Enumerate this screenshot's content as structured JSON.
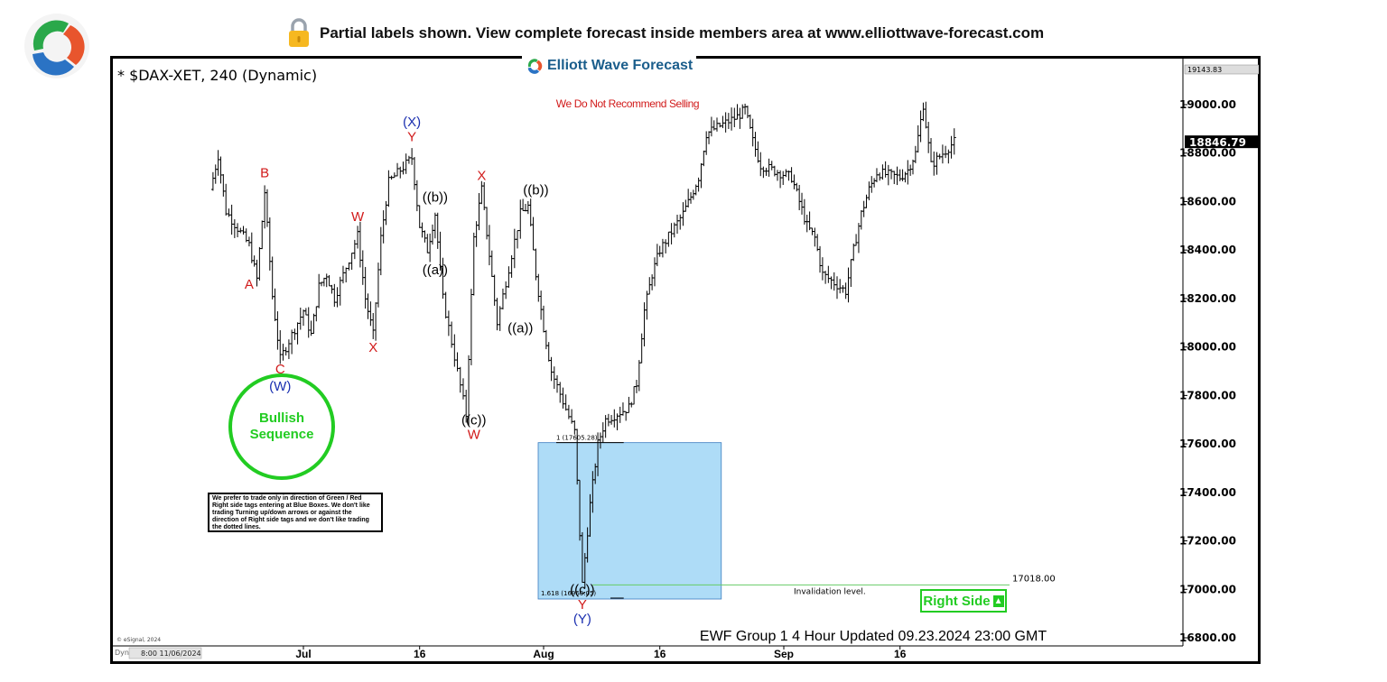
{
  "banner": {
    "lock_icon": "lock-icon",
    "text": "Partial labels shown. View complete forecast inside members area at www.elliottwave-forecast.com"
  },
  "brand": {
    "name": "Elliott Wave Forecast",
    "logo_icon": "swirl-logo-icon"
  },
  "chart_header": {
    "symbol": "* $DAX-XET, 240 (Dynamic)",
    "notice": "We Do Not Recommend Selling"
  },
  "footer": {
    "updated": "EWF Group 1 4 Hour Updated 09.23.2024 23:00 GMT",
    "copyright": "© eSignal, 2024",
    "cursor_time": "8:00 11/06/2024",
    "cursor_prefix": "Dyn"
  },
  "bullish_sequence": {
    "line1": "Bullish",
    "line2": "Sequence"
  },
  "disclaimer": {
    "text": "We prefer to trade only in direction of Green / Red Right side tags entering at Blue Boxes. We don't like trading Turning up/down arrows or against the direction of Right side tags and we don't like trading the dotted lines."
  },
  "right_side_tag": {
    "label": "Right Side",
    "arrow_icon": "arrow-up-icon"
  },
  "colors": {
    "blue_box": "#aedcf7",
    "blue_box_border": "#3a7bbf",
    "red_label": "#d11a1a",
    "blue_label": "#1a2fb0",
    "black_label": "#000000",
    "green": "#22cc22",
    "invalidation_line": "#66cc66"
  },
  "chart_data": {
    "type": "ohlc",
    "title": "* $DAX-XET, 240 (Dynamic)",
    "y_axis": {
      "ylim": [
        16790,
        19200
      ],
      "ticks": [
        "16800.00",
        "17000.00",
        "17200.00",
        "17400.00",
        "17600.00",
        "17800.00",
        "18000.00",
        "18200.00",
        "18400.00",
        "18600.00",
        "18800.00",
        "19000.00"
      ],
      "top_label": "19143.83",
      "last_price": "18846.79"
    },
    "x_axis": {
      "ticks": [
        "Jul",
        "16",
        "Aug",
        "16",
        "Sep",
        "16"
      ]
    },
    "price_path": [
      [
        "Jun 19",
        18650
      ],
      [
        "Jun 20",
        18790
      ],
      [
        "Jun 21",
        18560
      ],
      [
        "Jun 24",
        18420
      ],
      [
        "Jun 25",
        18280
      ],
      [
        "Jun 26",
        18640
      ],
      [
        "Jun 27",
        18210
      ],
      [
        "Jun 28",
        17950
      ],
      [
        "Jul 1",
        18150
      ],
      [
        "Jul 2",
        18050
      ],
      [
        "Jul 3",
        18250
      ],
      [
        "Jul 4",
        18300
      ],
      [
        "Jul 5",
        18200
      ],
      [
        "Jul 8",
        18460
      ],
      [
        "Jul 9",
        18200
      ],
      [
        "Jul 10",
        18050
      ],
      [
        "Jul 11",
        18450
      ],
      [
        "Jul 12",
        18680
      ],
      [
        "Jul 15",
        18780
      ],
      [
        "Jul 16",
        18500
      ],
      [
        "Jul 17",
        18400
      ],
      [
        "Jul 18",
        18550
      ],
      [
        "Jul 19",
        18200
      ],
      [
        "Jul 22",
        17720
      ],
      [
        "Jul 23",
        18450
      ],
      [
        "Jul 24",
        18650
      ],
      [
        "Jul 25",
        18380
      ],
      [
        "Jul 26",
        18100
      ],
      [
        "Jul 29",
        18550
      ],
      [
        "Jul 30",
        18580
      ],
      [
        "Jul 31",
        18300
      ],
      [
        "Aug 1",
        18080
      ],
      [
        "Aug 2",
        17900
      ],
      [
        "Aug 5",
        17650
      ],
      [
        "Aug 6",
        17020
      ],
      [
        "Aug 7",
        17350
      ],
      [
        "Aug 8",
        17600
      ],
      [
        "Aug 9",
        17700
      ],
      [
        "Aug 12",
        17750
      ],
      [
        "Aug 13",
        17850
      ],
      [
        "Aug 14",
        18150
      ],
      [
        "Aug 15",
        18300
      ],
      [
        "Aug 16",
        18400
      ],
      [
        "Aug 19",
        18550
      ],
      [
        "Aug 20",
        18620
      ],
      [
        "Aug 21",
        18700
      ],
      [
        "Aug 22",
        18880
      ],
      [
        "Aug 23",
        18900
      ],
      [
        "Aug 26",
        18950
      ],
      [
        "Aug 27",
        18980
      ],
      [
        "Aug 28",
        18850
      ],
      [
        "Aug 29",
        18750
      ],
      [
        "Sep 2",
        18700
      ],
      [
        "Sep 3",
        18600
      ],
      [
        "Sep 4",
        18500
      ],
      [
        "Sep 5",
        18450
      ],
      [
        "Sep 6",
        18300
      ],
      [
        "Sep 9",
        18230
      ],
      [
        "Sep 10",
        18400
      ],
      [
        "Sep 11",
        18550
      ],
      [
        "Sep 12",
        18650
      ],
      [
        "Sep 13",
        18720
      ],
      [
        "Sep 16",
        18700
      ],
      [
        "Sep 17",
        18730
      ],
      [
        "Sep 18",
        18800
      ],
      [
        "Sep 19",
        19000
      ],
      [
        "Sep 20",
        18750
      ],
      [
        "Sep 23",
        18846.79
      ]
    ],
    "blue_box": {
      "from": "Aug 1",
      "to": "Aug 23",
      "top": 17605.28,
      "bottom": 16960.05,
      "top_label": "1 (17605.28)",
      "bottom_label": "1.618 (16960.05)"
    },
    "invalidation": {
      "value": 17018.0,
      "label": "17018.00",
      "text": "Invalidation level."
    },
    "wave_labels": [
      {
        "text": "B",
        "date": "Jun 26",
        "price": 18700,
        "color": "red"
      },
      {
        "text": "A",
        "date": "Jun 24",
        "price": 18240,
        "color": "red"
      },
      {
        "text": "C",
        "date": "Jun 28",
        "price": 17890,
        "color": "red"
      },
      {
        "text": "(W)",
        "date": "Jun 28",
        "price": 17820,
        "color": "blue"
      },
      {
        "text": "W",
        "date": "Jul 8",
        "price": 18520,
        "color": "red"
      },
      {
        "text": "X",
        "date": "Jul 10",
        "price": 17980,
        "color": "red"
      },
      {
        "text": "(X)",
        "date": "Jul 15",
        "price": 18910,
        "color": "blue"
      },
      {
        "text": "Y",
        "date": "Jul 15",
        "price": 18850,
        "color": "red"
      },
      {
        "text": "((b))",
        "date": "Jul 18",
        "price": 18600,
        "color": "black"
      },
      {
        "text": "((a))",
        "date": "Jul 18",
        "price": 18300,
        "color": "black"
      },
      {
        "text": "X",
        "date": "Jul 24",
        "price": 18690,
        "color": "red"
      },
      {
        "text": "((c))",
        "date": "Jul 23",
        "price": 17680,
        "color": "black"
      },
      {
        "text": "W",
        "date": "Jul 23",
        "price": 17620,
        "color": "red"
      },
      {
        "text": "((b))",
        "date": "Jul 31",
        "price": 18630,
        "color": "black"
      },
      {
        "text": "((a))",
        "date": "Jul 29",
        "price": 18060,
        "color": "black"
      },
      {
        "text": "((c))",
        "date": "Aug 6",
        "price": 16980,
        "color": "black"
      },
      {
        "text": "Y",
        "date": "Aug 6",
        "price": 16920,
        "color": "red"
      },
      {
        "text": "(Y)",
        "date": "Aug 6",
        "price": 16860,
        "color": "blue"
      }
    ]
  }
}
